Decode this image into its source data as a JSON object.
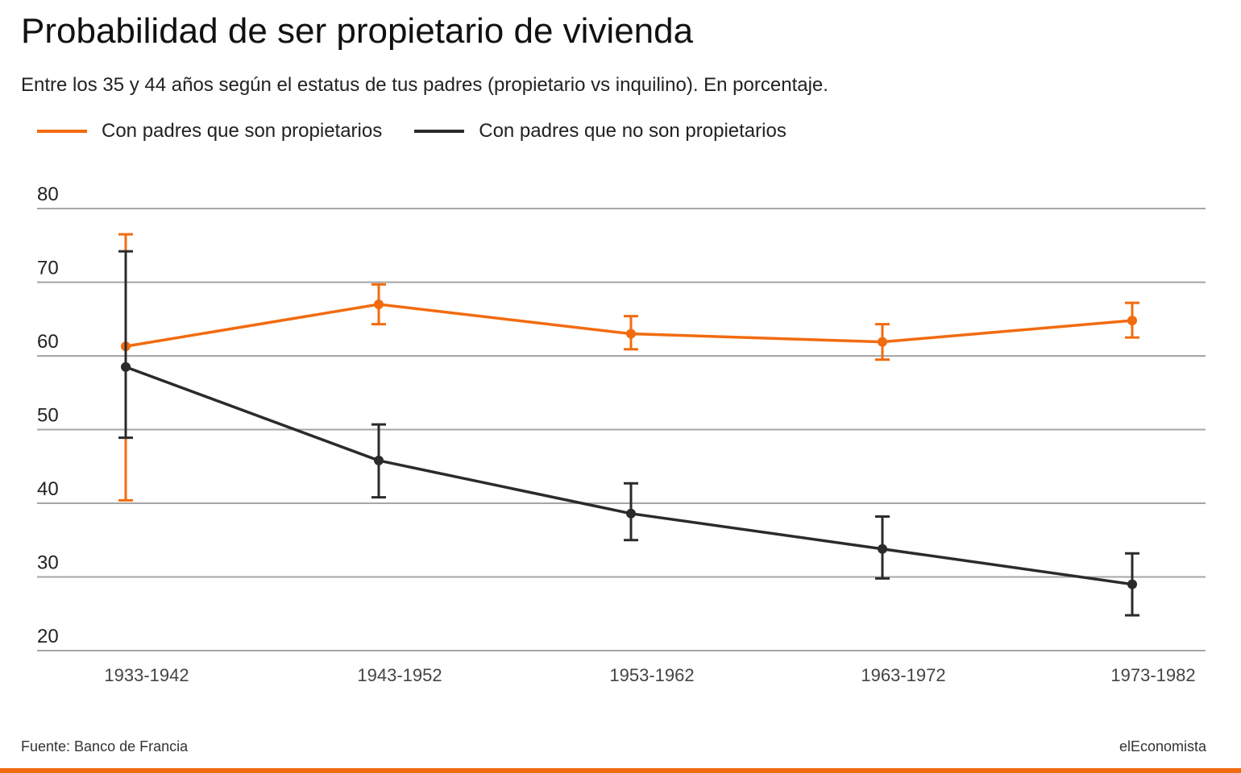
{
  "title": "Probabilidad de ser propietario de vivienda",
  "subtitle": "Entre los 35 y 44 años según el estatus de tus padres (propietario vs inquilino). En porcentaje.",
  "source": "Fuente: Banco de Francia",
  "brand": "elEconomista",
  "colors": {
    "orange": "#f26b0f",
    "dark": "#2b2b2b",
    "grid": "#a6a6a6",
    "accent_bar": "#f26b0f"
  },
  "chart_data": {
    "type": "line",
    "categories": [
      "1933-1942",
      "1943-1952",
      "1953-1962",
      "1963-1972",
      "1973-1982"
    ],
    "ylim": [
      20,
      80
    ],
    "yticks": [
      80,
      70,
      60,
      50,
      40,
      30,
      20
    ],
    "grid": true,
    "legend_position": "top-left",
    "series": [
      {
        "name": "Con padres que son propietarios",
        "color": "#f26b0f",
        "values": [
          61.3,
          67.0,
          63.0,
          61.9,
          64.8
        ],
        "error_low": [
          40.4,
          64.3,
          60.9,
          59.5,
          62.5
        ],
        "error_high": [
          76.5,
          69.7,
          65.4,
          64.3,
          67.2
        ]
      },
      {
        "name": "Con padres que no son propietarios",
        "color": "#2b2b2b",
        "values": [
          58.5,
          45.8,
          38.6,
          33.8,
          29.0
        ],
        "error_low": [
          48.9,
          40.8,
          35.0,
          29.8,
          24.8
        ],
        "error_high": [
          74.2,
          50.7,
          42.7,
          38.2,
          33.2
        ]
      }
    ]
  }
}
